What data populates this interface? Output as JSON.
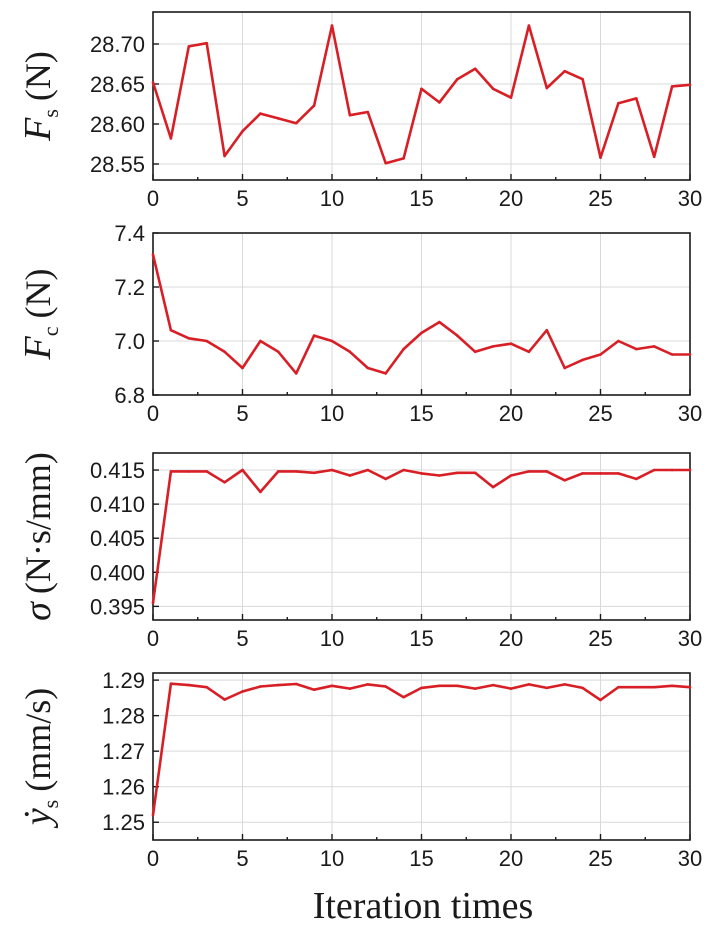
{
  "chart_data": [
    {
      "type": "line",
      "ylabel": {
        "symbol": "F",
        "sub": "s",
        "unit": "(N)"
      },
      "xlim": [
        0,
        30
      ],
      "ylim": [
        28.53,
        28.74
      ],
      "yticks": [
        "28.55",
        "28.60",
        "28.65",
        "28.70"
      ],
      "ytick_values": [
        28.55,
        28.6,
        28.65,
        28.7
      ],
      "xticks": [
        "0",
        "5",
        "10",
        "15",
        "20",
        "25",
        "30"
      ],
      "xtick_values": [
        0,
        5,
        10,
        15,
        20,
        25,
        30
      ],
      "grid": true,
      "color": "#d81f26",
      "x": [
        0,
        1,
        2,
        3,
        4,
        5,
        6,
        7,
        8,
        9,
        10,
        11,
        12,
        13,
        14,
        15,
        16,
        17,
        18,
        19,
        20,
        21,
        22,
        23,
        24,
        25,
        26,
        27,
        28,
        29,
        30
      ],
      "y": [
        28.652,
        28.582,
        28.697,
        28.701,
        28.56,
        28.591,
        28.613,
        28.607,
        28.601,
        28.623,
        28.723,
        28.611,
        28.615,
        28.551,
        28.557,
        28.644,
        28.627,
        28.656,
        28.669,
        28.644,
        28.633,
        28.723,
        28.645,
        28.666,
        28.656,
        28.558,
        28.626,
        28.632,
        28.559,
        28.647,
        28.649
      ]
    },
    {
      "type": "line",
      "ylabel": {
        "symbol": "F",
        "sub": "c",
        "unit": "(N)"
      },
      "xlim": [
        0,
        30
      ],
      "ylim": [
        6.8,
        7.4
      ],
      "yticks": [
        "6.8",
        "7.0",
        "7.2",
        "7.4"
      ],
      "ytick_values": [
        6.8,
        7.0,
        7.2,
        7.4
      ],
      "xticks": [
        "0",
        "5",
        "10",
        "15",
        "20",
        "25",
        "30"
      ],
      "xtick_values": [
        0,
        5,
        10,
        15,
        20,
        25,
        30
      ],
      "grid": true,
      "color": "#d81f26",
      "x": [
        0,
        1,
        2,
        3,
        4,
        5,
        6,
        7,
        8,
        9,
        10,
        11,
        12,
        13,
        14,
        15,
        16,
        17,
        18,
        19,
        20,
        21,
        22,
        23,
        24,
        25,
        26,
        27,
        28,
        29,
        30
      ],
      "y": [
        7.32,
        7.04,
        7.01,
        7.0,
        6.96,
        6.9,
        7.0,
        6.96,
        6.88,
        7.02,
        7.0,
        6.96,
        6.9,
        6.88,
        6.97,
        7.03,
        7.07,
        7.02,
        6.96,
        6.98,
        6.99,
        6.96,
        7.04,
        6.9,
        6.93,
        6.95,
        7.0,
        6.97,
        6.98,
        6.95,
        6.95
      ]
    },
    {
      "type": "line",
      "ylabel": {
        "symbol": "σ",
        "sub": "",
        "unit": "(N·s/mm)"
      },
      "xlim": [
        0,
        30
      ],
      "ylim": [
        0.393,
        0.4175
      ],
      "yticks": [
        "0.395",
        "0.400",
        "0.405",
        "0.410",
        "0.415"
      ],
      "ytick_values": [
        0.395,
        0.4,
        0.405,
        0.41,
        0.415
      ],
      "xticks": [
        "0",
        "5",
        "10",
        "15",
        "20",
        "25",
        "30"
      ],
      "xtick_values": [
        0,
        5,
        10,
        15,
        20,
        25,
        30
      ],
      "grid": true,
      "color": "#d81f26",
      "x": [
        0,
        1,
        2,
        3,
        4,
        5,
        6,
        7,
        8,
        9,
        10,
        11,
        12,
        13,
        14,
        15,
        16,
        17,
        18,
        19,
        20,
        21,
        22,
        23,
        24,
        25,
        26,
        27,
        28,
        29,
        30
      ],
      "y": [
        0.3955,
        0.4148,
        0.4148,
        0.4148,
        0.4132,
        0.415,
        0.4118,
        0.4148,
        0.4148,
        0.4146,
        0.415,
        0.4142,
        0.415,
        0.4137,
        0.415,
        0.4145,
        0.4142,
        0.4146,
        0.4146,
        0.4125,
        0.4142,
        0.4148,
        0.4148,
        0.4135,
        0.4145,
        0.4145,
        0.4145,
        0.4137,
        0.415,
        0.415,
        0.415
      ]
    },
    {
      "type": "line",
      "ylabel": {
        "symbol": "ẏ",
        "sub": "s",
        "unit": "(mm/s)"
      },
      "xlim": [
        0,
        30
      ],
      "ylim": [
        1.245,
        1.292
      ],
      "yticks": [
        "1.25",
        "1.26",
        "1.27",
        "1.28",
        "1.29"
      ],
      "ytick_values": [
        1.25,
        1.26,
        1.27,
        1.28,
        1.29
      ],
      "xticks": [
        "0",
        "5",
        "10",
        "15",
        "20",
        "25",
        "30"
      ],
      "xtick_values": [
        0,
        5,
        10,
        15,
        20,
        25,
        30
      ],
      "xlabel": "Iteration times",
      "grid": true,
      "color": "#d81f26",
      "x": [
        0,
        1,
        2,
        3,
        4,
        5,
        6,
        7,
        8,
        9,
        10,
        11,
        12,
        13,
        14,
        15,
        16,
        17,
        18,
        19,
        20,
        21,
        22,
        23,
        24,
        25,
        26,
        27,
        28,
        29,
        30
      ],
      "y": [
        1.252,
        1.289,
        1.2886,
        1.288,
        1.2845,
        1.2868,
        1.2882,
        1.2886,
        1.2889,
        1.2873,
        1.2884,
        1.2876,
        1.2888,
        1.2882,
        1.2852,
        1.2878,
        1.2884,
        1.2884,
        1.2876,
        1.2886,
        1.2876,
        1.2888,
        1.2878,
        1.2888,
        1.2878,
        1.2844,
        1.288,
        1.288,
        1.288,
        1.2884,
        1.288
      ]
    }
  ]
}
